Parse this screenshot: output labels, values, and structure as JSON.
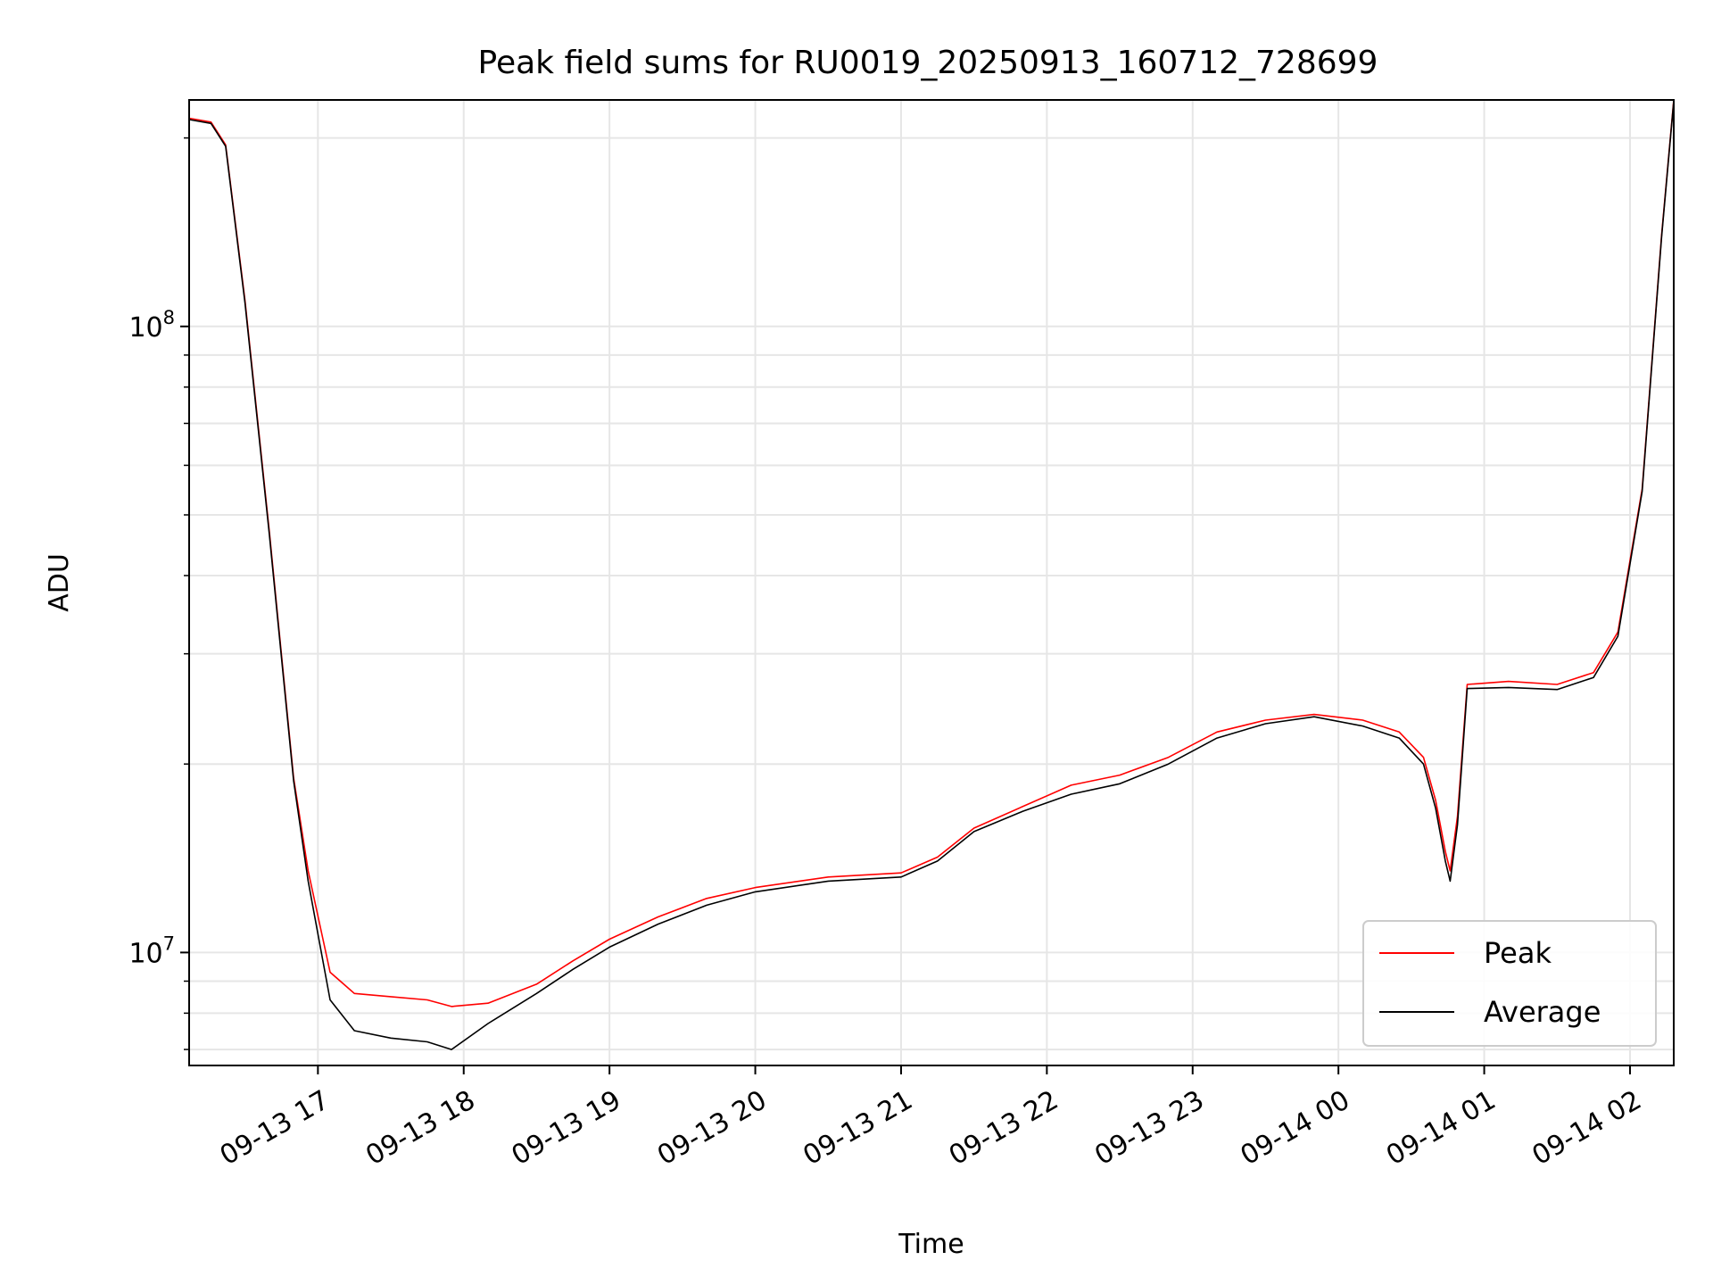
{
  "chart_data": {
    "type": "line",
    "title": "Peak field sums for RU0019_20250913_160712_728699",
    "xlabel": "Time",
    "ylabel": "ADU",
    "yscale": "log",
    "grid": true,
    "legend_position": "lower right",
    "xlim": [
      "2025-09-13 16:07",
      "2025-09-14 02:18"
    ],
    "ylim": [
      6600000,
      230000000
    ],
    "x_ticks": [
      {
        "value": "2025-09-13 17:00",
        "label": "09-13 17"
      },
      {
        "value": "2025-09-13 18:00",
        "label": "09-13 18"
      },
      {
        "value": "2025-09-13 19:00",
        "label": "09-13 19"
      },
      {
        "value": "2025-09-13 20:00",
        "label": "09-13 20"
      },
      {
        "value": "2025-09-13 21:00",
        "label": "09-13 21"
      },
      {
        "value": "2025-09-13 22:00",
        "label": "09-13 22"
      },
      {
        "value": "2025-09-13 23:00",
        "label": "09-13 23"
      },
      {
        "value": "2025-09-14 00:00",
        "label": "09-14 00"
      },
      {
        "value": "2025-09-14 01:00",
        "label": "09-14 01"
      },
      {
        "value": "2025-09-14 02:00",
        "label": "09-14 02"
      }
    ],
    "y_ticks": [
      {
        "value": 10000000,
        "base": "10",
        "exp": "7"
      },
      {
        "value": 100000000,
        "base": "10",
        "exp": "8"
      }
    ],
    "series": [
      {
        "name": "Peak",
        "color": "#ff0000",
        "x": [
          "2025-09-13 16:07",
          "2025-09-13 16:16",
          "2025-09-13 16:22",
          "2025-09-13 16:30",
          "2025-09-13 16:40",
          "2025-09-13 16:50",
          "2025-09-13 16:56",
          "2025-09-13 17:05",
          "2025-09-13 17:15",
          "2025-09-13 17:30",
          "2025-09-13 17:45",
          "2025-09-13 17:55",
          "2025-09-13 18:10",
          "2025-09-13 18:30",
          "2025-09-13 18:45",
          "2025-09-13 19:00",
          "2025-09-13 19:20",
          "2025-09-13 19:40",
          "2025-09-13 20:00",
          "2025-09-13 20:30",
          "2025-09-13 21:00",
          "2025-09-13 21:15",
          "2025-09-13 21:30",
          "2025-09-13 21:50",
          "2025-09-13 22:10",
          "2025-09-13 22:30",
          "2025-09-13 22:50",
          "2025-09-13 23:10",
          "2025-09-13 23:30",
          "2025-09-13 23:50",
          "2025-09-14 00:10",
          "2025-09-14 00:25",
          "2025-09-14 00:35",
          "2025-09-14 00:40",
          "2025-09-14 00:44",
          "2025-09-14 00:46",
          "2025-09-14 00:49",
          "2025-09-14 00:53",
          "2025-09-14 01:10",
          "2025-09-14 01:30",
          "2025-09-14 01:45",
          "2025-09-14 01:55",
          "2025-09-14 02:05",
          "2025-09-14 02:13",
          "2025-09-14 02:18"
        ],
        "values": [
          215000000,
          212000000,
          195000000,
          110000000,
          47000000,
          19000000,
          13500000,
          9300000,
          8600000,
          8500000,
          8400000,
          8200000,
          8300000,
          8900000,
          9700000,
          10500000,
          11400000,
          12200000,
          12700000,
          13200000,
          13400000,
          14200000,
          15800000,
          17100000,
          18500000,
          19200000,
          20500000,
          22500000,
          23500000,
          24000000,
          23500000,
          22500000,
          20500000,
          17500000,
          14500000,
          13500000,
          16500000,
          26800000,
          27100000,
          26800000,
          28000000,
          32500000,
          55000000,
          140000000,
          230000000
        ]
      },
      {
        "name": "Average",
        "color": "#000000",
        "x": [
          "2025-09-13 16:07",
          "2025-09-13 16:16",
          "2025-09-13 16:22",
          "2025-09-13 16:30",
          "2025-09-13 16:40",
          "2025-09-13 16:50",
          "2025-09-13 16:56",
          "2025-09-13 17:05",
          "2025-09-13 17:15",
          "2025-09-13 17:30",
          "2025-09-13 17:45",
          "2025-09-13 17:55",
          "2025-09-13 18:10",
          "2025-09-13 18:30",
          "2025-09-13 18:45",
          "2025-09-13 19:00",
          "2025-09-13 19:20",
          "2025-09-13 19:40",
          "2025-09-13 20:00",
          "2025-09-13 20:30",
          "2025-09-13 21:00",
          "2025-09-13 21:15",
          "2025-09-13 21:30",
          "2025-09-13 21:50",
          "2025-09-13 22:10",
          "2025-09-13 22:30",
          "2025-09-13 22:50",
          "2025-09-13 23:10",
          "2025-09-13 23:30",
          "2025-09-13 23:50",
          "2025-09-14 00:10",
          "2025-09-14 00:25",
          "2025-09-14 00:35",
          "2025-09-14 00:40",
          "2025-09-14 00:44",
          "2025-09-14 00:46",
          "2025-09-14 00:49",
          "2025-09-14 00:53",
          "2025-09-14 01:10",
          "2025-09-14 01:30",
          "2025-09-14 01:45",
          "2025-09-14 01:55",
          "2025-09-14 02:05",
          "2025-09-14 02:13",
          "2025-09-14 02:18"
        ],
        "values": [
          214000000,
          211000000,
          194000000,
          109000000,
          46500000,
          18800000,
          13000000,
          8400000,
          7500000,
          7300000,
          7200000,
          7000000,
          7700000,
          8600000,
          9400000,
          10200000,
          11100000,
          11900000,
          12500000,
          13000000,
          13200000,
          14000000,
          15600000,
          16800000,
          17900000,
          18600000,
          20000000,
          22000000,
          23200000,
          23800000,
          23000000,
          22000000,
          20000000,
          17000000,
          14000000,
          13000000,
          16000000,
          26400000,
          26500000,
          26300000,
          27500000,
          32000000,
          54500000,
          139000000,
          229000000
        ]
      }
    ]
  }
}
